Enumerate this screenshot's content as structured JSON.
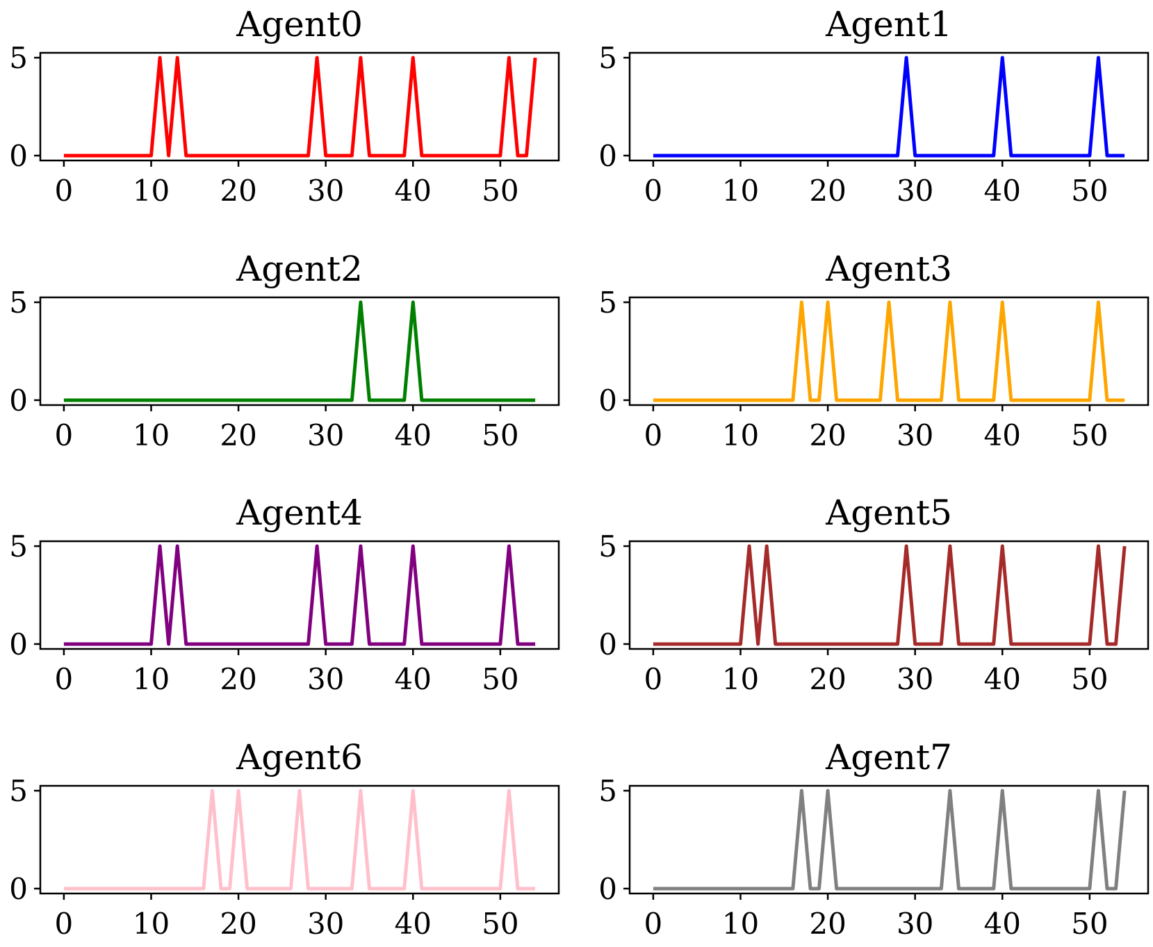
{
  "chart_data": [
    {
      "type": "line",
      "title": "Agent0",
      "color": "#ff0000",
      "x_start": 0,
      "values": [
        0,
        0,
        0,
        0,
        0,
        0,
        0,
        0,
        0,
        0,
        0,
        5,
        0,
        5,
        0,
        0,
        0,
        0,
        0,
        0,
        0,
        0,
        0,
        0,
        0,
        0,
        0,
        0,
        0,
        5,
        0,
        0,
        0,
        0,
        5,
        0,
        0,
        0,
        0,
        0,
        5,
        0,
        0,
        0,
        0,
        0,
        0,
        0,
        0,
        0,
        0,
        5,
        0,
        0,
        5
      ],
      "xticks": [
        0,
        10,
        20,
        30,
        40,
        50
      ],
      "yticks": [
        0,
        5
      ],
      "xlim": [
        -2.7,
        56.7
      ],
      "ylim": [
        -0.25,
        5.25
      ]
    },
    {
      "type": "line",
      "title": "Agent1",
      "color": "#0000ff",
      "x_start": 0,
      "values": [
        0,
        0,
        0,
        0,
        0,
        0,
        0,
        0,
        0,
        0,
        0,
        0,
        0,
        0,
        0,
        0,
        0,
        0,
        0,
        0,
        0,
        0,
        0,
        0,
        0,
        0,
        0,
        0,
        0,
        5,
        0,
        0,
        0,
        0,
        0,
        0,
        0,
        0,
        0,
        0,
        5,
        0,
        0,
        0,
        0,
        0,
        0,
        0,
        0,
        0,
        0,
        5,
        0,
        0,
        0
      ],
      "xticks": [
        0,
        10,
        20,
        30,
        40,
        50
      ],
      "yticks": [
        0,
        5
      ],
      "xlim": [
        -2.7,
        56.7
      ],
      "ylim": [
        -0.25,
        5.25
      ]
    },
    {
      "type": "line",
      "title": "Agent2",
      "color": "#008000",
      "x_start": 0,
      "values": [
        0,
        0,
        0,
        0,
        0,
        0,
        0,
        0,
        0,
        0,
        0,
        0,
        0,
        0,
        0,
        0,
        0,
        0,
        0,
        0,
        0,
        0,
        0,
        0,
        0,
        0,
        0,
        0,
        0,
        0,
        0,
        0,
        0,
        0,
        5,
        0,
        0,
        0,
        0,
        0,
        5,
        0,
        0,
        0,
        0,
        0,
        0,
        0,
        0,
        0,
        0,
        0,
        0,
        0,
        0
      ],
      "xticks": [
        0,
        10,
        20,
        30,
        40,
        50
      ],
      "yticks": [
        0,
        5
      ],
      "xlim": [
        -2.7,
        56.7
      ],
      "ylim": [
        -0.25,
        5.25
      ]
    },
    {
      "type": "line",
      "title": "Agent3",
      "color": "#ffa500",
      "x_start": 0,
      "values": [
        0,
        0,
        0,
        0,
        0,
        0,
        0,
        0,
        0,
        0,
        0,
        0,
        0,
        0,
        0,
        0,
        0,
        5,
        0,
        0,
        5,
        0,
        0,
        0,
        0,
        0,
        0,
        5,
        0,
        0,
        0,
        0,
        0,
        0,
        5,
        0,
        0,
        0,
        0,
        0,
        5,
        0,
        0,
        0,
        0,
        0,
        0,
        0,
        0,
        0,
        0,
        5,
        0,
        0,
        0
      ],
      "xticks": [
        0,
        10,
        20,
        30,
        40,
        50
      ],
      "yticks": [
        0,
        5
      ],
      "xlim": [
        -2.7,
        56.7
      ],
      "ylim": [
        -0.25,
        5.25
      ]
    },
    {
      "type": "line",
      "title": "Agent4",
      "color": "#800080",
      "x_start": 0,
      "values": [
        0,
        0,
        0,
        0,
        0,
        0,
        0,
        0,
        0,
        0,
        0,
        5,
        0,
        5,
        0,
        0,
        0,
        0,
        0,
        0,
        0,
        0,
        0,
        0,
        0,
        0,
        0,
        0,
        0,
        5,
        0,
        0,
        0,
        0,
        5,
        0,
        0,
        0,
        0,
        0,
        5,
        0,
        0,
        0,
        0,
        0,
        0,
        0,
        0,
        0,
        0,
        5,
        0,
        0,
        0
      ],
      "xticks": [
        0,
        10,
        20,
        30,
        40,
        50
      ],
      "yticks": [
        0,
        5
      ],
      "xlim": [
        -2.7,
        56.7
      ],
      "ylim": [
        -0.25,
        5.25
      ]
    },
    {
      "type": "line",
      "title": "Agent5",
      "color": "#a52a2a",
      "x_start": 0,
      "values": [
        0,
        0,
        0,
        0,
        0,
        0,
        0,
        0,
        0,
        0,
        0,
        5,
        0,
        5,
        0,
        0,
        0,
        0,
        0,
        0,
        0,
        0,
        0,
        0,
        0,
        0,
        0,
        0,
        0,
        5,
        0,
        0,
        0,
        0,
        5,
        0,
        0,
        0,
        0,
        0,
        5,
        0,
        0,
        0,
        0,
        0,
        0,
        0,
        0,
        0,
        0,
        5,
        0,
        0,
        5
      ],
      "xticks": [
        0,
        10,
        20,
        30,
        40,
        50
      ],
      "yticks": [
        0,
        5
      ],
      "xlim": [
        -2.7,
        56.7
      ],
      "ylim": [
        -0.25,
        5.25
      ]
    },
    {
      "type": "line",
      "title": "Agent6",
      "color": "#ffc0cb",
      "x_start": 0,
      "values": [
        0,
        0,
        0,
        0,
        0,
        0,
        0,
        0,
        0,
        0,
        0,
        0,
        0,
        0,
        0,
        0,
        0,
        5,
        0,
        0,
        5,
        0,
        0,
        0,
        0,
        0,
        0,
        5,
        0,
        0,
        0,
        0,
        0,
        0,
        5,
        0,
        0,
        0,
        0,
        0,
        5,
        0,
        0,
        0,
        0,
        0,
        0,
        0,
        0,
        0,
        0,
        5,
        0,
        0,
        0
      ],
      "xticks": [
        0,
        10,
        20,
        30,
        40,
        50
      ],
      "yticks": [
        0,
        5
      ],
      "xlim": [
        -2.7,
        56.7
      ],
      "ylim": [
        -0.25,
        5.25
      ]
    },
    {
      "type": "line",
      "title": "Agent7",
      "color": "#808080",
      "x_start": 0,
      "values": [
        0,
        0,
        0,
        0,
        0,
        0,
        0,
        0,
        0,
        0,
        0,
        0,
        0,
        0,
        0,
        0,
        0,
        5,
        0,
        0,
        5,
        0,
        0,
        0,
        0,
        0,
        0,
        0,
        0,
        0,
        0,
        0,
        0,
        0,
        5,
        0,
        0,
        0,
        0,
        0,
        5,
        0,
        0,
        0,
        0,
        0,
        0,
        0,
        0,
        0,
        0,
        5,
        0,
        0,
        5
      ],
      "xticks": [
        0,
        10,
        20,
        30,
        40,
        50
      ],
      "yticks": [
        0,
        5
      ],
      "xlim": [
        -2.7,
        56.7
      ],
      "ylim": [
        -0.25,
        5.25
      ]
    }
  ]
}
